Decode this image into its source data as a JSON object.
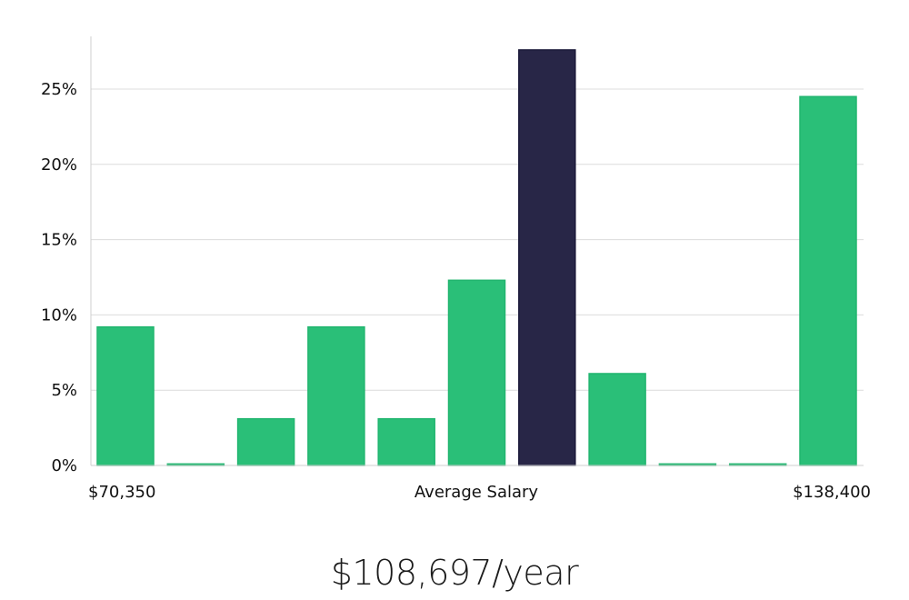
{
  "chart_data": {
    "type": "bar",
    "title": "",
    "xlabel": "Average Salary",
    "ylabel": "",
    "x_min_label": "$70,350",
    "x_max_label": "$138,400",
    "y_ticks": [
      {
        "value": 0,
        "label": "0%"
      },
      {
        "value": 5,
        "label": "5%"
      },
      {
        "value": 10,
        "label": "10%"
      },
      {
        "value": 15,
        "label": "15%"
      },
      {
        "value": 20,
        "label": "20%"
      },
      {
        "value": 25,
        "label": "25%"
      }
    ],
    "ylim": [
      0,
      28.5
    ],
    "grid": true,
    "values": [
      9.2,
      0.1,
      3.1,
      9.2,
      3.1,
      12.3,
      27.6,
      6.1,
      0.1,
      0.1,
      24.5
    ],
    "highlight_index": 6,
    "colors": {
      "bar": "#2abf78",
      "bar_edge": "#21b56f",
      "highlight": "#282647",
      "highlight_edge": "#1b1a3a",
      "grid": "#dcdcdc",
      "axis": "#cfcfcf"
    }
  },
  "summary": {
    "average_text": "$108,697/year"
  }
}
